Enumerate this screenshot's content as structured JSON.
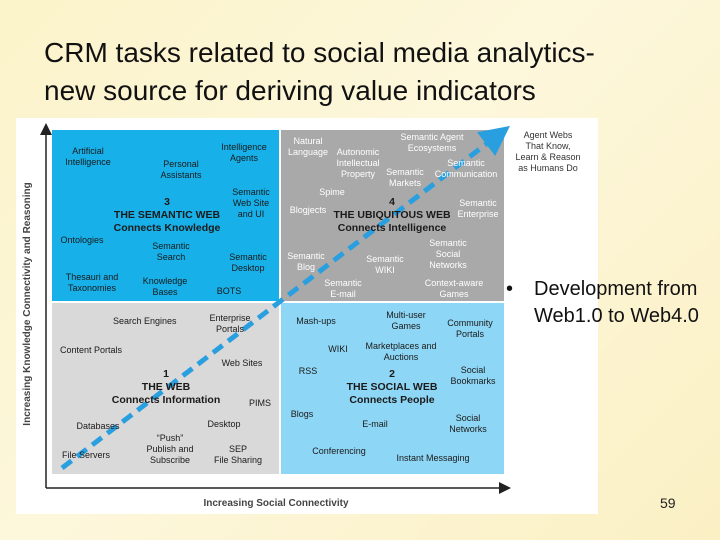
{
  "slide": {
    "title_line1": "CRM tasks related to social media analytics-",
    "title_line2": "new source for deriving value indicators",
    "bullet": "Development from Web1.0 to Web4.0",
    "bullet_marker": "•",
    "page_number": "59"
  },
  "diagram": {
    "y_axis": "Increasing Knowledge Connectivity and Reasoning",
    "x_axis": "Increasing Social Connectivity",
    "corner_note": [
      "Agent Webs",
      "That Know,",
      "Learn & Reason",
      "as Humans Do"
    ],
    "colors": {
      "blue": "#17b0e9",
      "gray": "#a9a9a9",
      "lightgray": "#d9d9d9",
      "lightblue": "#8ed6f5",
      "dash": "#2a9fe0"
    },
    "quadrants": {
      "semantic": {
        "number": "3",
        "name": [
          "THE SEMANTIC WEB",
          "Connects Knowledge"
        ],
        "labels": [
          [
            "Artificial",
            "Intelligence"
          ],
          [
            "Intelligence",
            "Agents"
          ],
          [
            "Personal",
            "Assistants"
          ],
          [
            "Semantic",
            "Web Site",
            "and UI"
          ],
          [
            "Ontologies"
          ],
          [
            "Semantic",
            "Search"
          ],
          [
            "Semantic",
            "Desktop"
          ],
          [
            "Thesauri and",
            "Taxonomies"
          ],
          [
            "Knowledge",
            "Bases"
          ],
          [
            "BOTS"
          ]
        ]
      },
      "ubiquitous": {
        "number": "4",
        "name": [
          "THE UBIQUITOUS WEB",
          "Connects Intelligence"
        ],
        "labels": [
          [
            "Natural",
            "Language"
          ],
          [
            "Semantic Agent",
            "Ecosystems"
          ],
          [
            "Autonomic",
            "Intellectual",
            "Property"
          ],
          [
            "Semantic",
            "Markets"
          ],
          [
            "Semantic",
            "Communication"
          ],
          [
            "Spime"
          ],
          [
            "Blogjects"
          ],
          [
            "Semantic",
            "Enterprise"
          ],
          [
            "Semantic",
            "Blog"
          ],
          [
            "Semantic",
            "WIKI"
          ],
          [
            "Semantic",
            "Social",
            "Networks"
          ],
          [
            "Semantic",
            "E-mail"
          ],
          [
            "Context-aware",
            "Games"
          ]
        ]
      },
      "web": {
        "number": "1",
        "name": [
          "THE WEB",
          "Connects Information"
        ],
        "labels": [
          [
            "Search Engines"
          ],
          [
            "Enterprise",
            "Portals"
          ],
          [
            "Content Portals"
          ],
          [
            "Web Sites"
          ],
          [
            "PIMS"
          ],
          [
            "Databases"
          ],
          [
            "Desktop"
          ],
          [
            "“Push”",
            "Publish and",
            "Subscribe"
          ],
          [
            "SEP",
            "File Sharing"
          ],
          [
            "File Servers"
          ]
        ]
      },
      "social": {
        "number": "2",
        "name": [
          "THE SOCIAL WEB",
          "Connects People"
        ],
        "labels": [
          [
            "Mash-ups"
          ],
          [
            "Multi-user",
            "Games"
          ],
          [
            "Community",
            "Portals"
          ],
          [
            "WIKI"
          ],
          [
            "Marketplaces and",
            "Auctions"
          ],
          [
            "RSS"
          ],
          [
            "Social",
            "Bookmarks"
          ],
          [
            "Blogs"
          ],
          [
            "E-mail"
          ],
          [
            "Social",
            "Networks"
          ],
          [
            "Conferencing"
          ],
          [
            "Instant Messaging"
          ]
        ]
      }
    }
  }
}
